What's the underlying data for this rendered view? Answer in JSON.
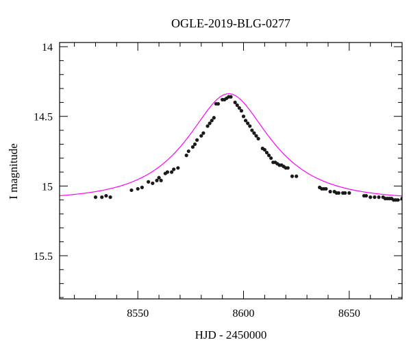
{
  "chart_data": {
    "type": "scatter",
    "title": "OGLE-2019-BLG-0277",
    "xlabel": "HJD - 2450000",
    "ylabel": "I magnitude",
    "xlim": [
      8513,
      8675
    ],
    "ylim": [
      15.81,
      13.97
    ],
    "y_inverted": true,
    "x_ticks": [
      8550,
      8600,
      8650
    ],
    "x_tick_labels": [
      "8550",
      "8600",
      "8650"
    ],
    "y_ticks": [
      14,
      14.5,
      15,
      15.5
    ],
    "y_tick_labels": [
      "14",
      "14.5",
      "15",
      "15.5"
    ],
    "grid": false,
    "colors": {
      "data_points": "#1a1a1a",
      "model_curve": "#ff00ff",
      "axes": "#000000"
    },
    "model": {
      "name": "",
      "type": "point-lens microlensing fit",
      "params": {
        "t0": 8593.0,
        "tE": 32.0,
        "u0": 0.55,
        "base": 15.1,
        "blend_fraction": 1.0
      }
    },
    "series": [
      {
        "name": "",
        "x": [
          8530,
          8533,
          8535,
          8537,
          8547,
          8550,
          8552,
          8555,
          8557,
          8559,
          8560,
          8561,
          8563,
          8564,
          8566,
          8567,
          8569,
          8573,
          8574,
          8576,
          8577,
          8578,
          8580,
          8581,
          8583,
          8584,
          8585,
          8586,
          8587,
          8588,
          8590,
          8591,
          8592,
          8593,
          8594,
          8596,
          8597,
          8598,
          8599,
          8600,
          8601,
          8602,
          8603,
          8604,
          8605,
          8606,
          8607,
          8609,
          8610,
          8611,
          8612,
          8613,
          8614,
          8615,
          8616,
          8617,
          8618,
          8619,
          8620,
          8621,
          8623,
          8625,
          8636,
          8637,
          8638,
          8639,
          8641,
          8643,
          8644,
          8645,
          8647,
          8648,
          8650,
          8657,
          8658,
          8660,
          8662,
          8664,
          8666,
          8667,
          8668,
          8669,
          8670,
          8671,
          8672,
          8673,
          8675
        ],
        "y": [
          15.08,
          15.08,
          15.07,
          15.08,
          15.03,
          15.02,
          15.01,
          14.97,
          14.98,
          14.96,
          14.94,
          14.96,
          14.91,
          14.9,
          14.9,
          14.88,
          14.87,
          14.78,
          14.75,
          14.72,
          14.7,
          14.67,
          14.64,
          14.62,
          14.57,
          14.55,
          14.53,
          14.51,
          14.41,
          14.41,
          14.38,
          14.38,
          14.37,
          14.36,
          14.36,
          14.4,
          14.42,
          14.44,
          14.46,
          14.5,
          14.53,
          14.55,
          14.57,
          14.6,
          14.62,
          14.64,
          14.66,
          14.73,
          14.74,
          14.76,
          14.78,
          14.8,
          14.83,
          14.83,
          14.84,
          14.85,
          14.85,
          14.86,
          14.87,
          14.87,
          14.93,
          14.93,
          15.01,
          15.02,
          15.02,
          15.02,
          15.04,
          15.04,
          15.05,
          15.05,
          15.05,
          15.05,
          15.05,
          15.07,
          15.07,
          15.08,
          15.08,
          15.08,
          15.08,
          15.09,
          15.09,
          15.09,
          15.09,
          15.1,
          15.1,
          15.1,
          15.09
        ]
      }
    ]
  }
}
